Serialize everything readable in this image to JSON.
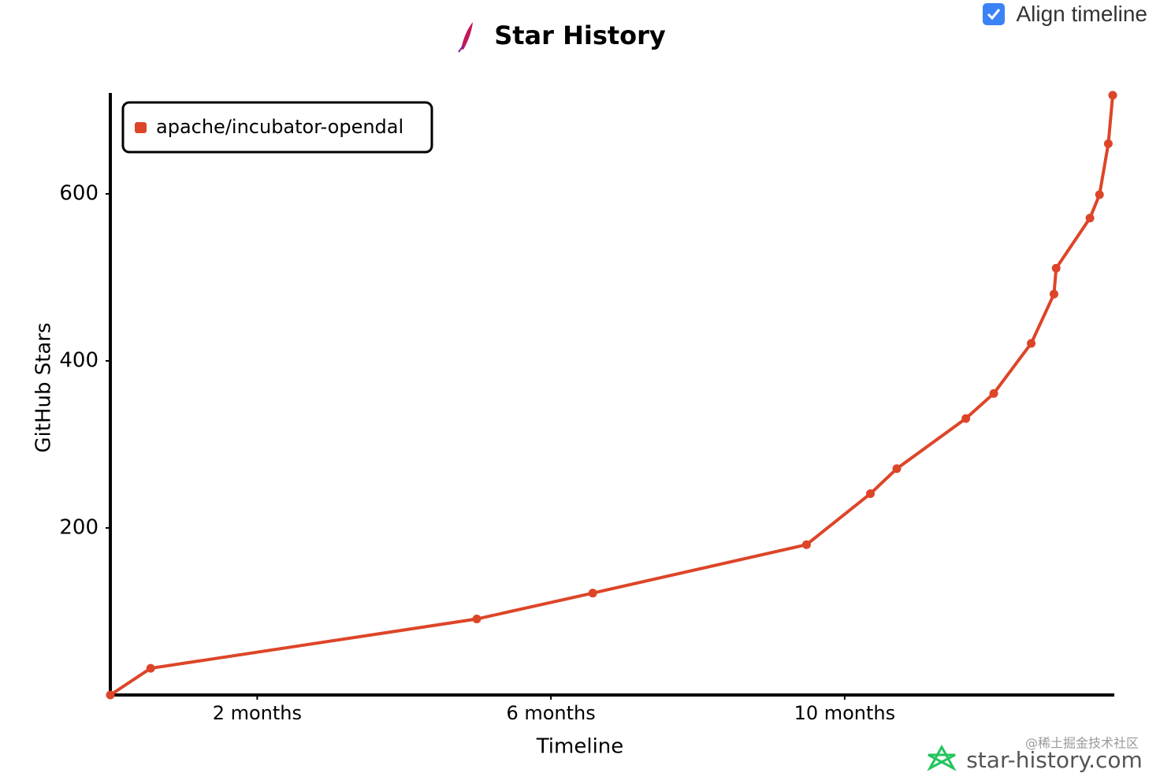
{
  "controls": {
    "align_timeline": "Align timeline"
  },
  "footer": {
    "credit": "@稀土掘金技术社区",
    "watermark": "star-history.com"
  },
  "chart_data": {
    "type": "line",
    "title": "Star History",
    "x_label": "Timeline",
    "y_label": "GitHub Stars",
    "x": [
      0,
      0.55,
      4.99,
      6.57,
      9.48,
      10.35,
      10.71,
      11.65,
      12.03,
      12.54,
      12.85,
      12.88,
      13.34,
      13.47,
      13.59,
      13.65
    ],
    "series": [
      {
        "name": "apache/incubator-opendal",
        "color": "#dd4528",
        "values": [
          0,
          32,
          91,
          122,
          180,
          241,
          271,
          331,
          361,
          421,
          480,
          511,
          571,
          599,
          660,
          718
        ]
      }
    ],
    "xlim": [
      0,
      13.65
    ],
    "ylim": [
      0,
      720
    ],
    "xticks": [
      {
        "value": 2,
        "label": "2 months"
      },
      {
        "value": 6,
        "label": "6 months"
      },
      {
        "value": 10,
        "label": "10 months"
      }
    ],
    "yticks": [
      200,
      400,
      600
    ],
    "grid": false,
    "legend": "upper left"
  }
}
